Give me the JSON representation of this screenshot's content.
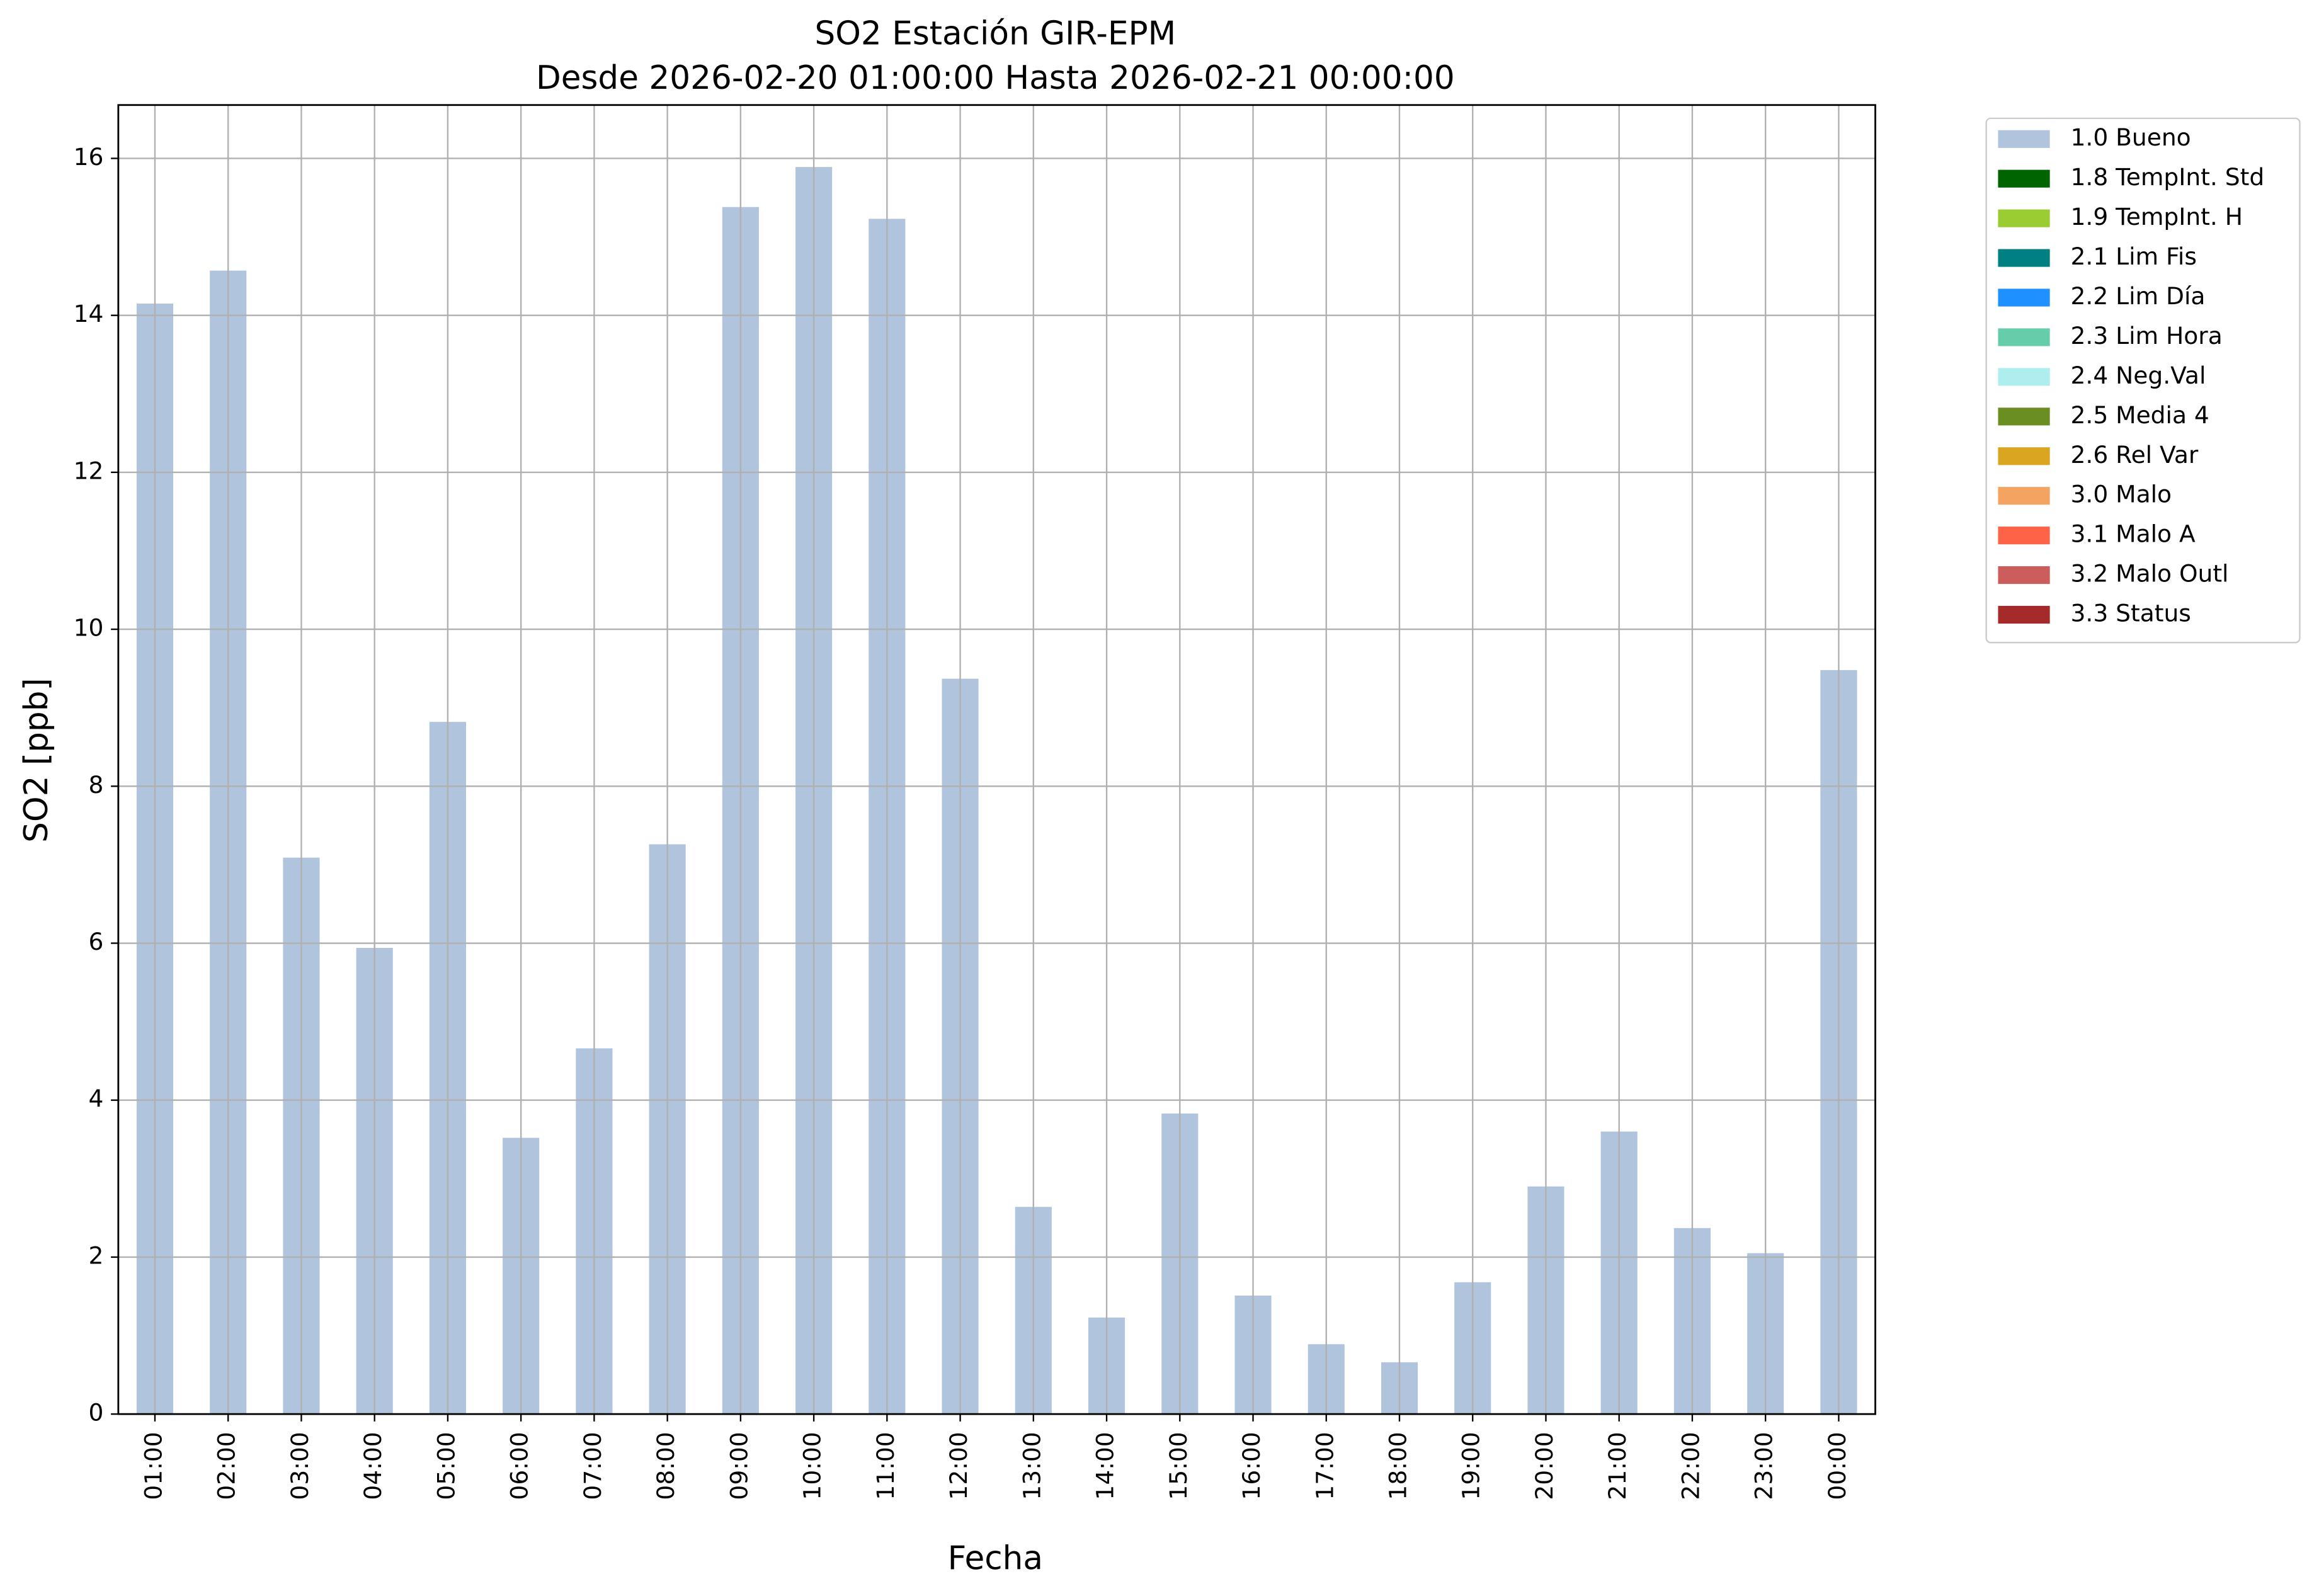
{
  "chart_data": {
    "type": "bar",
    "stacked": true,
    "title": "SO2 Estación GIR-EPM",
    "subtitle": "Desde 2026-02-20 01:00:00 Hasta 2026-02-21 00:00:00",
    "x_label": "Fecha",
    "y_label": "SO2 [ppb]",
    "categories": [
      "01:00",
      "02:00",
      "03:00",
      "04:00",
      "05:00",
      "06:00",
      "07:00",
      "08:00",
      "09:00",
      "10:00",
      "11:00",
      "12:00",
      "13:00",
      "14:00",
      "15:00",
      "16:00",
      "17:00",
      "18:00",
      "19:00",
      "20:00",
      "21:00",
      "22:00",
      "23:00",
      "00:00"
    ],
    "series": [
      {
        "name": "1.0 Bueno",
        "color": "#b0c4de",
        "values": [
          14.15,
          14.57,
          7.09,
          5.94,
          8.82,
          3.52,
          4.66,
          7.26,
          15.38,
          15.89,
          15.23,
          9.37,
          2.64,
          1.23,
          3.83,
          1.51,
          0.89,
          0.66,
          1.68,
          2.9,
          3.6,
          2.37,
          2.05,
          9.48
        ]
      },
      {
        "name": "1.8 TempInt. Std",
        "color": "#006400",
        "values": [
          0,
          0,
          0,
          0,
          0,
          0,
          0,
          0,
          0,
          0,
          0,
          0,
          0,
          0,
          0,
          0,
          0,
          0,
          0,
          0,
          0,
          0,
          0,
          0
        ]
      },
      {
        "name": "1.9 TempInt. H",
        "color": "#9acd32",
        "values": [
          0,
          0,
          0,
          0,
          0,
          0,
          0,
          0,
          0,
          0,
          0,
          0,
          0,
          0,
          0,
          0,
          0,
          0,
          0,
          0,
          0,
          0,
          0,
          0
        ]
      },
      {
        "name": "2.1 Lim Fis",
        "color": "#008080",
        "values": [
          0,
          0,
          0,
          0,
          0,
          0,
          0,
          0,
          0,
          0,
          0,
          0,
          0,
          0,
          0,
          0,
          0,
          0,
          0,
          0,
          0,
          0,
          0,
          0
        ]
      },
      {
        "name": "2.2 Lim Día",
        "color": "#1e90ff",
        "values": [
          0,
          0,
          0,
          0,
          0,
          0,
          0,
          0,
          0,
          0,
          0,
          0,
          0,
          0,
          0,
          0,
          0,
          0,
          0,
          0,
          0,
          0,
          0,
          0
        ]
      },
      {
        "name": "2.3 Lim Hora",
        "color": "#66cdaa",
        "values": [
          0,
          0,
          0,
          0,
          0,
          0,
          0,
          0,
          0,
          0,
          0,
          0,
          0,
          0,
          0,
          0,
          0,
          0,
          0,
          0,
          0,
          0,
          0,
          0
        ]
      },
      {
        "name": "2.4 Neg.Val",
        "color": "#afeeee",
        "values": [
          0,
          0,
          0,
          0,
          0,
          0,
          0,
          0,
          0,
          0,
          0,
          0,
          0,
          0,
          0,
          0,
          0,
          0,
          0,
          0,
          0,
          0,
          0,
          0
        ]
      },
      {
        "name": "2.5 Media 4",
        "color": "#6b8e23",
        "values": [
          0,
          0,
          0,
          0,
          0,
          0,
          0,
          0,
          0,
          0,
          0,
          0,
          0,
          0,
          0,
          0,
          0,
          0,
          0,
          0,
          0,
          0,
          0,
          0
        ]
      },
      {
        "name": "2.6 Rel Var",
        "color": "#daa520",
        "values": [
          0,
          0,
          0,
          0,
          0,
          0,
          0,
          0,
          0,
          0,
          0,
          0,
          0,
          0,
          0,
          0,
          0,
          0,
          0,
          0,
          0,
          0,
          0,
          0
        ]
      },
      {
        "name": "3.0 Malo",
        "color": "#f4a460",
        "values": [
          0,
          0,
          0,
          0,
          0,
          0,
          0,
          0,
          0,
          0,
          0,
          0,
          0,
          0,
          0,
          0,
          0,
          0,
          0,
          0,
          0,
          0,
          0,
          0
        ]
      },
      {
        "name": "3.1 Malo A",
        "color": "#ff6347",
        "values": [
          0,
          0,
          0,
          0,
          0,
          0,
          0,
          0,
          0,
          0,
          0,
          0,
          0,
          0,
          0,
          0,
          0,
          0,
          0,
          0,
          0,
          0,
          0,
          0
        ]
      },
      {
        "name": "3.2 Malo Outl",
        "color": "#cd5c5c",
        "values": [
          0,
          0,
          0,
          0,
          0,
          0,
          0,
          0,
          0,
          0,
          0,
          0,
          0,
          0,
          0,
          0,
          0,
          0,
          0,
          0,
          0,
          0,
          0,
          0
        ]
      },
      {
        "name": "3.3 Status",
        "color": "#a52a2a",
        "values": [
          0,
          0,
          0,
          0,
          0,
          0,
          0,
          0,
          0,
          0,
          0,
          0,
          0,
          0,
          0,
          0,
          0,
          0,
          0,
          0,
          0,
          0,
          0,
          0
        ]
      }
    ],
    "ylim": [
      0,
      16.68
    ],
    "yticks": [
      0,
      2,
      4,
      6,
      8,
      10,
      12,
      14,
      16
    ],
    "grid": true,
    "legend": "outside right"
  }
}
